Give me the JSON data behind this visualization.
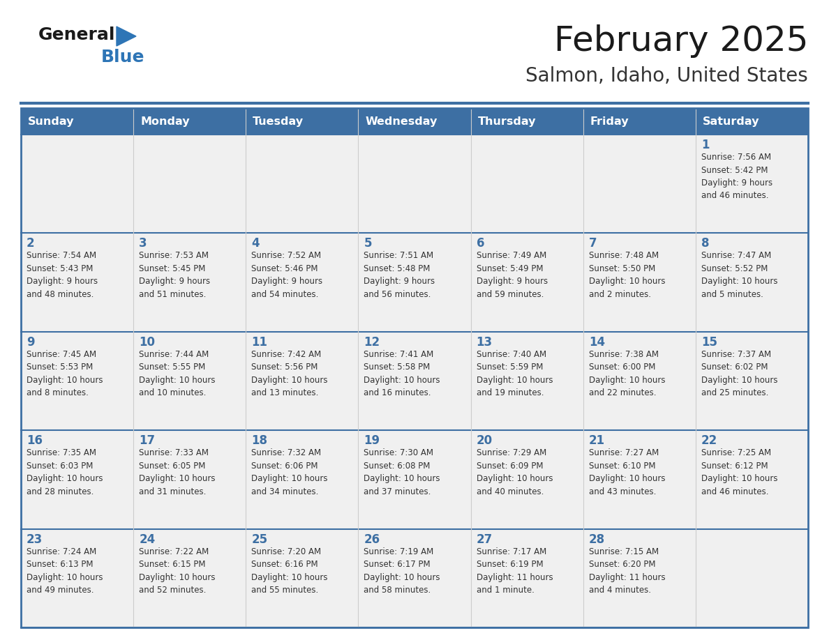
{
  "title": "February 2025",
  "subtitle": "Salmon, Idaho, United States",
  "header_bg_color": "#3d6fa3",
  "header_text_color": "#ffffff",
  "cell_bg": "#f0f0f0",
  "day_number_color": "#3d6fa3",
  "cell_text_color": "#333333",
  "border_color_dark": "#3d6fa3",
  "border_color_light": "#cccccc",
  "days_of_week": [
    "Sunday",
    "Monday",
    "Tuesday",
    "Wednesday",
    "Thursday",
    "Friday",
    "Saturday"
  ],
  "weeks": [
    [
      {
        "day": null,
        "info": null
      },
      {
        "day": null,
        "info": null
      },
      {
        "day": null,
        "info": null
      },
      {
        "day": null,
        "info": null
      },
      {
        "day": null,
        "info": null
      },
      {
        "day": null,
        "info": null
      },
      {
        "day": 1,
        "info": "Sunrise: 7:56 AM\nSunset: 5:42 PM\nDaylight: 9 hours\nand 46 minutes."
      }
    ],
    [
      {
        "day": 2,
        "info": "Sunrise: 7:54 AM\nSunset: 5:43 PM\nDaylight: 9 hours\nand 48 minutes."
      },
      {
        "day": 3,
        "info": "Sunrise: 7:53 AM\nSunset: 5:45 PM\nDaylight: 9 hours\nand 51 minutes."
      },
      {
        "day": 4,
        "info": "Sunrise: 7:52 AM\nSunset: 5:46 PM\nDaylight: 9 hours\nand 54 minutes."
      },
      {
        "day": 5,
        "info": "Sunrise: 7:51 AM\nSunset: 5:48 PM\nDaylight: 9 hours\nand 56 minutes."
      },
      {
        "day": 6,
        "info": "Sunrise: 7:49 AM\nSunset: 5:49 PM\nDaylight: 9 hours\nand 59 minutes."
      },
      {
        "day": 7,
        "info": "Sunrise: 7:48 AM\nSunset: 5:50 PM\nDaylight: 10 hours\nand 2 minutes."
      },
      {
        "day": 8,
        "info": "Sunrise: 7:47 AM\nSunset: 5:52 PM\nDaylight: 10 hours\nand 5 minutes."
      }
    ],
    [
      {
        "day": 9,
        "info": "Sunrise: 7:45 AM\nSunset: 5:53 PM\nDaylight: 10 hours\nand 8 minutes."
      },
      {
        "day": 10,
        "info": "Sunrise: 7:44 AM\nSunset: 5:55 PM\nDaylight: 10 hours\nand 10 minutes."
      },
      {
        "day": 11,
        "info": "Sunrise: 7:42 AM\nSunset: 5:56 PM\nDaylight: 10 hours\nand 13 minutes."
      },
      {
        "day": 12,
        "info": "Sunrise: 7:41 AM\nSunset: 5:58 PM\nDaylight: 10 hours\nand 16 minutes."
      },
      {
        "day": 13,
        "info": "Sunrise: 7:40 AM\nSunset: 5:59 PM\nDaylight: 10 hours\nand 19 minutes."
      },
      {
        "day": 14,
        "info": "Sunrise: 7:38 AM\nSunset: 6:00 PM\nDaylight: 10 hours\nand 22 minutes."
      },
      {
        "day": 15,
        "info": "Sunrise: 7:37 AM\nSunset: 6:02 PM\nDaylight: 10 hours\nand 25 minutes."
      }
    ],
    [
      {
        "day": 16,
        "info": "Sunrise: 7:35 AM\nSunset: 6:03 PM\nDaylight: 10 hours\nand 28 minutes."
      },
      {
        "day": 17,
        "info": "Sunrise: 7:33 AM\nSunset: 6:05 PM\nDaylight: 10 hours\nand 31 minutes."
      },
      {
        "day": 18,
        "info": "Sunrise: 7:32 AM\nSunset: 6:06 PM\nDaylight: 10 hours\nand 34 minutes."
      },
      {
        "day": 19,
        "info": "Sunrise: 7:30 AM\nSunset: 6:08 PM\nDaylight: 10 hours\nand 37 minutes."
      },
      {
        "day": 20,
        "info": "Sunrise: 7:29 AM\nSunset: 6:09 PM\nDaylight: 10 hours\nand 40 minutes."
      },
      {
        "day": 21,
        "info": "Sunrise: 7:27 AM\nSunset: 6:10 PM\nDaylight: 10 hours\nand 43 minutes."
      },
      {
        "day": 22,
        "info": "Sunrise: 7:25 AM\nSunset: 6:12 PM\nDaylight: 10 hours\nand 46 minutes."
      }
    ],
    [
      {
        "day": 23,
        "info": "Sunrise: 7:24 AM\nSunset: 6:13 PM\nDaylight: 10 hours\nand 49 minutes."
      },
      {
        "day": 24,
        "info": "Sunrise: 7:22 AM\nSunset: 6:15 PM\nDaylight: 10 hours\nand 52 minutes."
      },
      {
        "day": 25,
        "info": "Sunrise: 7:20 AM\nSunset: 6:16 PM\nDaylight: 10 hours\nand 55 minutes."
      },
      {
        "day": 26,
        "info": "Sunrise: 7:19 AM\nSunset: 6:17 PM\nDaylight: 10 hours\nand 58 minutes."
      },
      {
        "day": 27,
        "info": "Sunrise: 7:17 AM\nSunset: 6:19 PM\nDaylight: 11 hours\nand 1 minute."
      },
      {
        "day": 28,
        "info": "Sunrise: 7:15 AM\nSunset: 6:20 PM\nDaylight: 11 hours\nand 4 minutes."
      },
      {
        "day": null,
        "info": null
      }
    ]
  ],
  "logo_text_general": "General",
  "logo_text_blue": "Blue",
  "logo_triangle_color": "#2e75b6",
  "logo_general_color": "#1a1a1a",
  "fig_width": 11.88,
  "fig_height": 9.18,
  "dpi": 100
}
